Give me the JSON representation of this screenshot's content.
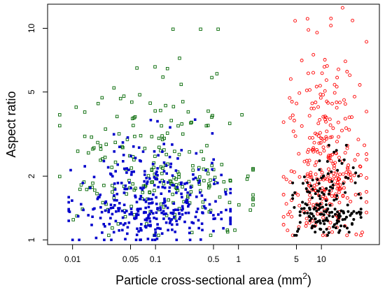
{
  "chart_data": {
    "type": "scatter",
    "xlabel": "Particle cross-sectional area (mm",
    "xlabel_sup": "2",
    "xlabel_close": ")",
    "ylabel": "Aspect ratio",
    "x_scale": "log",
    "y_scale": "log",
    "xlim": [
      0.005,
      50
    ],
    "ylim": [
      0.95,
      13
    ],
    "x_ticks": [
      {
        "value": 0.01,
        "label": "0.01"
      },
      {
        "value": 0.05,
        "label": "0.05"
      },
      {
        "value": 0.1,
        "label": "0.1"
      },
      {
        "value": 0.5,
        "label": "0.5"
      },
      {
        "value": 1,
        "label": "1"
      },
      {
        "value": 5,
        "label": "5"
      },
      {
        "value": 10,
        "label": "10"
      }
    ],
    "y_ticks": [
      {
        "value": 1,
        "label": "1"
      },
      {
        "value": 2,
        "label": "2"
      },
      {
        "value": 5,
        "label": "5"
      },
      {
        "value": 10,
        "label": "10"
      }
    ],
    "grid": false,
    "legend": "none",
    "series": [
      {
        "color": "#0000cc",
        "marker": "filled-square",
        "x_range": [
          0.009,
          0.8
        ],
        "y_range": [
          1.0,
          3.7
        ],
        "n_points": 360,
        "extra_points": [
          [
            0.012,
            1.0
          ],
          [
            0.01,
            1.0
          ],
          [
            0.5,
            1.1
          ],
          [
            0.8,
            1.25
          ],
          [
            0.3,
            3.7
          ],
          [
            0.15,
            3.4
          ]
        ]
      },
      {
        "color": "#006600",
        "marker": "open-square",
        "x_range": [
          0.007,
          1.5
        ],
        "y_range": [
          1.05,
          9.9
        ],
        "n_points": 230,
        "extra_points": [
          [
            0.35,
            9.9
          ],
          [
            0.55,
            6.1
          ],
          [
            0.007,
            3.9
          ],
          [
            1.1,
            3.9
          ],
          [
            0.12,
            3.1
          ],
          [
            0.8,
            1.9
          ],
          [
            1.3,
            2.0
          ]
        ]
      },
      {
        "color": "#ff0000",
        "marker": "open-circle",
        "x_range": [
          3.5,
          35
        ],
        "y_range": [
          1.05,
          12.5
        ],
        "n_points": 300,
        "extra_points": [
          [
            18,
            12.5
          ],
          [
            13,
            10.3
          ],
          [
            8,
            7.5
          ],
          [
            11,
            7.1
          ],
          [
            22,
            6.0
          ],
          [
            3.5,
            3.6
          ],
          [
            33,
            2.8
          ]
        ]
      },
      {
        "color": "#000000",
        "marker": "filled-circle",
        "x_range": [
          4.5,
          30
        ],
        "y_range": [
          1.05,
          2.8
        ],
        "n_points": 170,
        "extra_points": [
          [
            20,
            2.8
          ],
          [
            28,
            2.0
          ],
          [
            5,
            1.05
          ]
        ]
      }
    ]
  }
}
